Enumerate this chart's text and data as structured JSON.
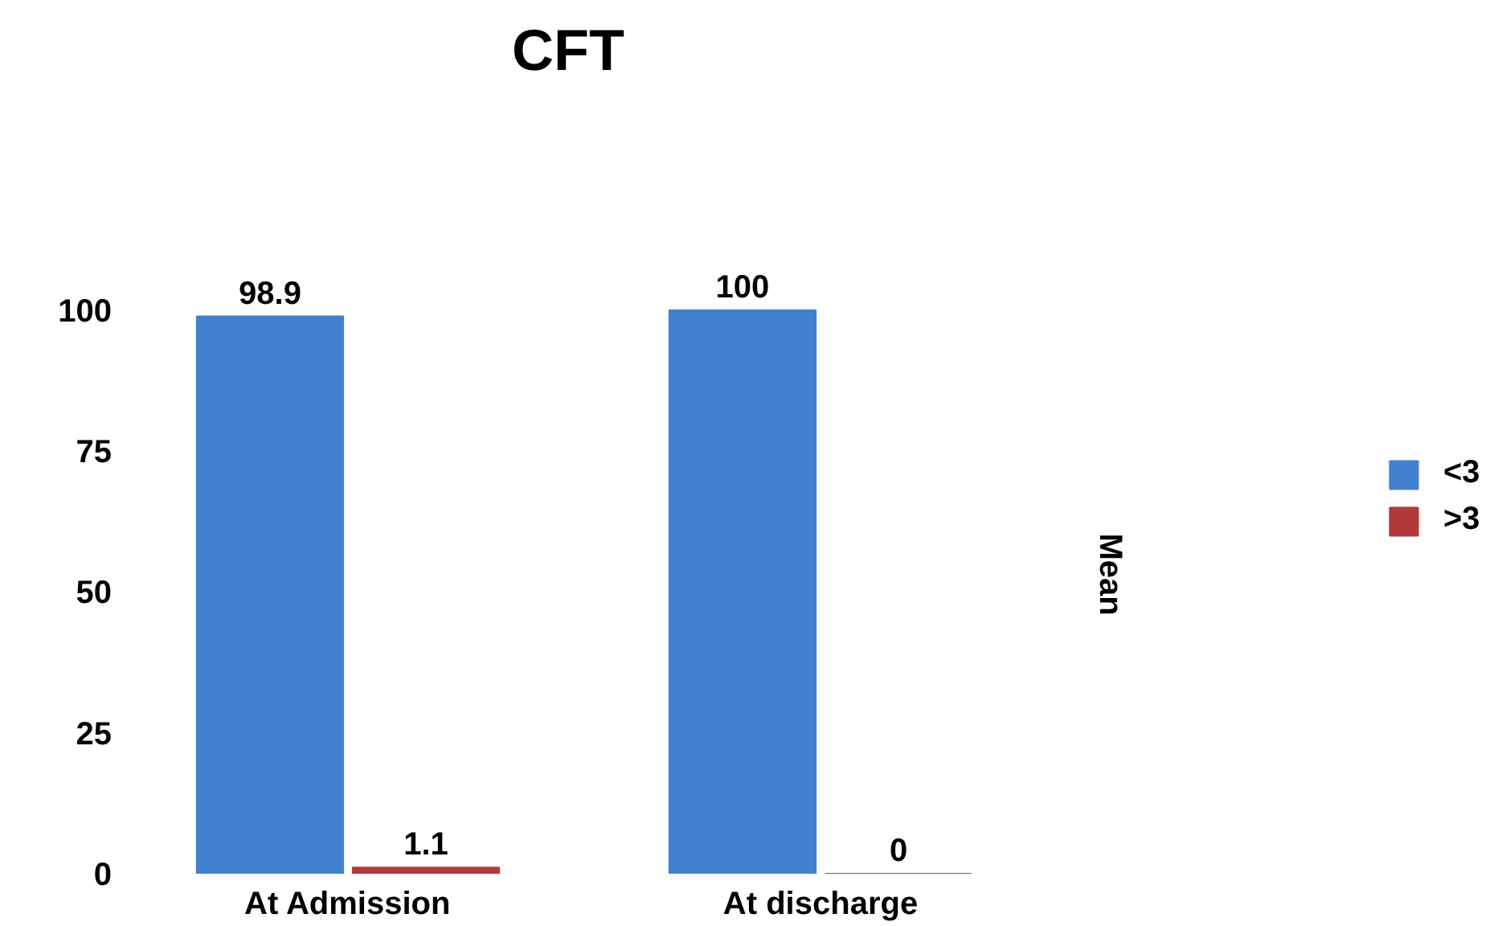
{
  "chart_data": {
    "type": "bar",
    "title": "CFT",
    "ylabel": "Mean",
    "categories": [
      "At Admission",
      "At discharge"
    ],
    "series": [
      {
        "name": "<3",
        "color": "#4281d0",
        "values": [
          98.9,
          100
        ]
      },
      {
        "name": ">3",
        "color": "#b23a3a",
        "values": [
          1.1,
          0
        ]
      }
    ],
    "ylim": [
      0,
      100
    ],
    "yticks": [
      0,
      25,
      50,
      75,
      100
    ],
    "data_labels": true,
    "legend": "right"
  }
}
